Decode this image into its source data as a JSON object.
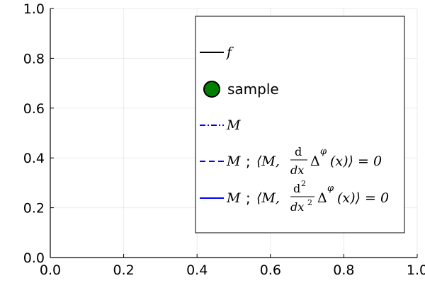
{
  "chart_data": {
    "type": "line",
    "title": "",
    "xlabel": "",
    "ylabel": "",
    "xlim": [
      0,
      1
    ],
    "ylim": [
      0,
      1
    ],
    "xticks": [
      "0.0",
      "0.2",
      "0.4",
      "0.6",
      "0.8",
      "1.0"
    ],
    "yticks": [
      "0.0",
      "0.2",
      "0.4",
      "0.6",
      "0.8",
      "1.0"
    ],
    "grid": true,
    "legend_position": "right",
    "series": [
      {
        "name": "f",
        "style": "solid",
        "color": "#000000",
        "points": []
      },
      {
        "name": "sample",
        "style": "marker",
        "color": "#008000",
        "points": []
      },
      {
        "name": "M",
        "style": "dashdot",
        "color": "#0000ff",
        "points": []
      },
      {
        "name": "M ; ⟨M, d/dx Δ^φ(x)⟩ = 0",
        "style": "dashed",
        "color": "#0000ff",
        "points": []
      },
      {
        "name": "M ; ⟨M, d²/dx² Δ^φ(x)⟩ = 0",
        "style": "solid",
        "color": "#0000ff",
        "points": []
      }
    ],
    "legend_text": {
      "f": "f",
      "sample": "sample",
      "M": "M",
      "sep": ";",
      "bracket_open": "⟨M,",
      "d_num": "d",
      "d_den": "dx",
      "d2_num": "d",
      "d2_den": "dx",
      "delta": "Δ",
      "phi": "φ",
      "arg_close": "(x)⟩ = 0"
    }
  }
}
